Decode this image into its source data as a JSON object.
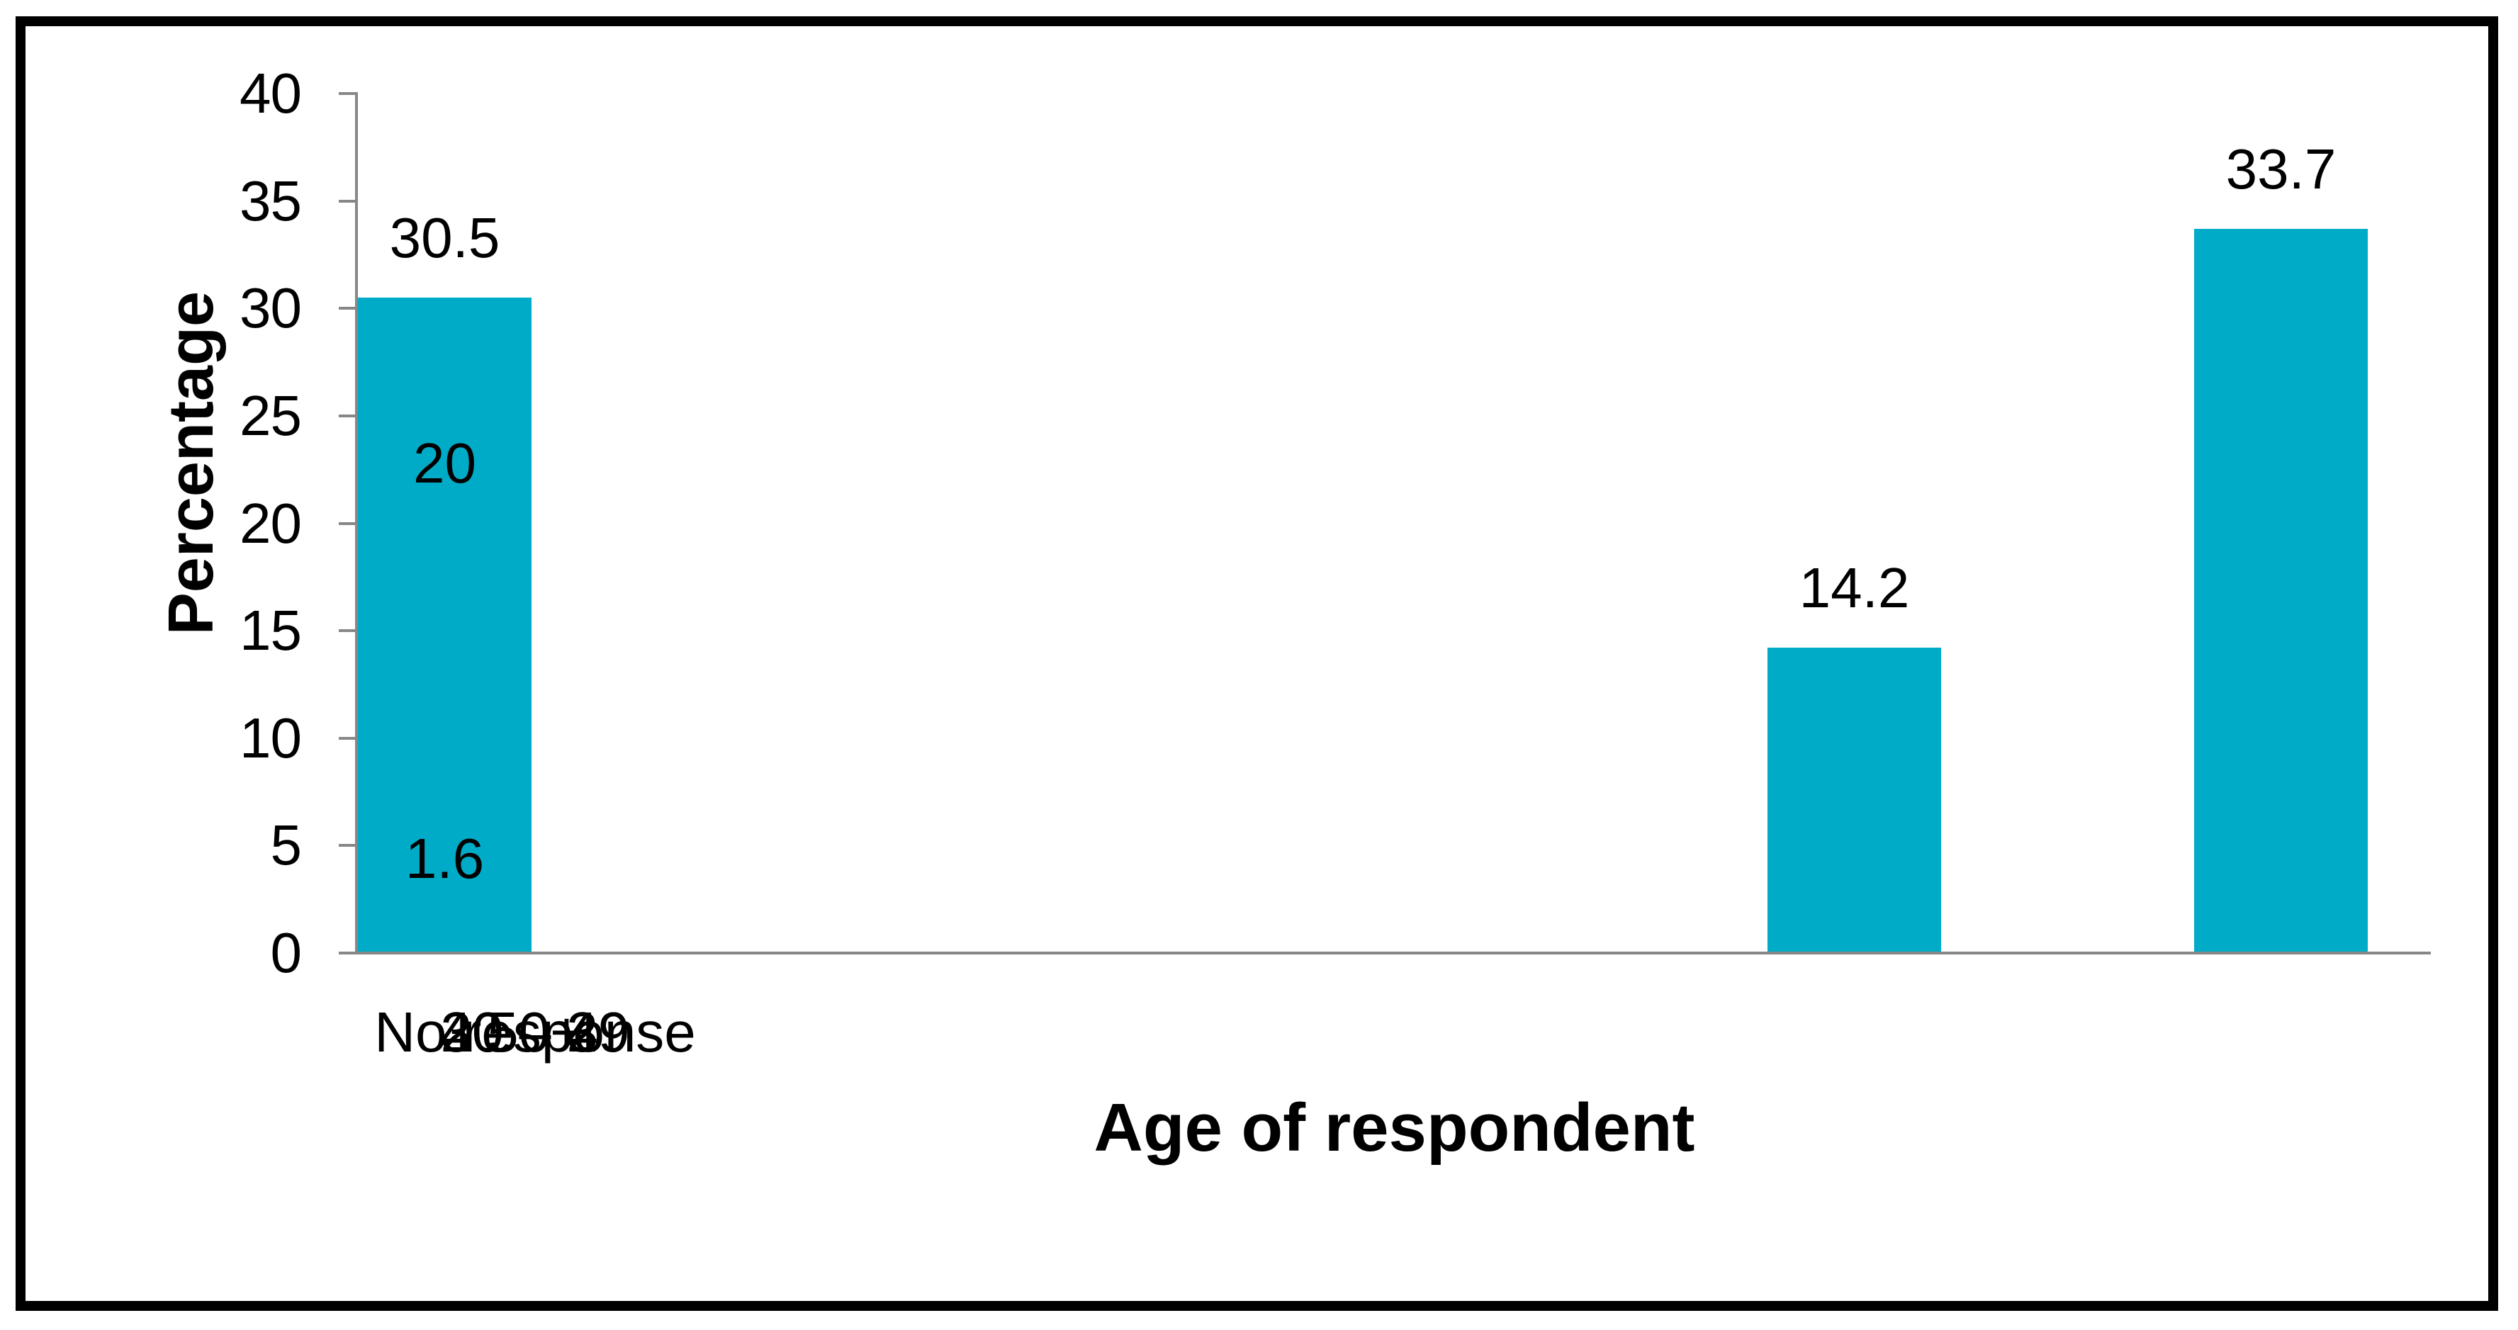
{
  "chart_data": {
    "type": "bar",
    "categories": [
      "20 – 29",
      "30 – 39",
      "40 – 49",
      "50+",
      "No response"
    ],
    "values": [
      14.2,
      33.7,
      30.5,
      20,
      1.6
    ],
    "value_labels": [
      "14.2",
      "33.7",
      "30.5",
      "20",
      "1.6"
    ],
    "series_count": 1,
    "title": "",
    "xlabel": "Age of respondent",
    "ylabel": "Percentage",
    "ylim": [
      0,
      40
    ],
    "yticks": [
      0,
      5,
      10,
      15,
      20,
      25,
      30,
      35,
      40
    ],
    "grid": "off",
    "legend": "none",
    "bar_color": "#00ABC7",
    "axis_color": "#878787",
    "text_color": "#000000",
    "frame_color": "#000000",
    "background_color": "#ffffff"
  }
}
